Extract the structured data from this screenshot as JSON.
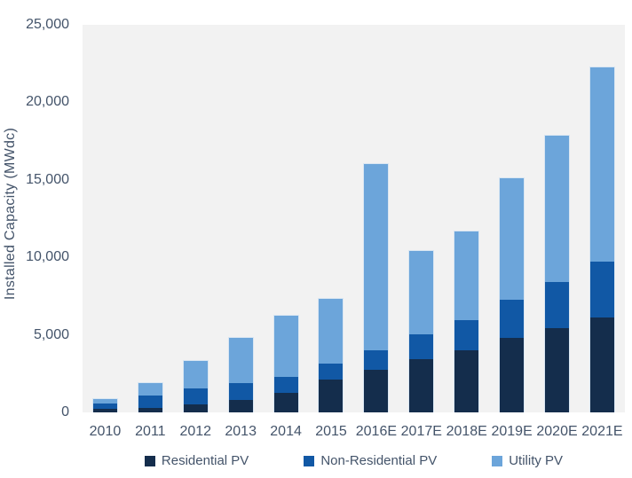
{
  "y_axis": {
    "title": "Installed Capacity (MWdc)",
    "ticks": [
      {
        "value": 0,
        "label": "0"
      },
      {
        "value": 5000,
        "label": "5,000"
      },
      {
        "value": 10000,
        "label": "10,000"
      },
      {
        "value": 15000,
        "label": "15,000"
      },
      {
        "value": 20000,
        "label": "20,000"
      },
      {
        "value": 25000,
        "label": "25,000"
      }
    ]
  },
  "chart_data": {
    "type": "bar",
    "stacked": true,
    "title": "",
    "xlabel": "",
    "ylabel": "Installed Capacity (MWdc)",
    "ylim": [
      0,
      25000
    ],
    "grid": false,
    "legend_position": "bottom",
    "plot_background": "#F2F2F2",
    "text_color": "#44546A",
    "bar_border_color": "#D9E6F2",
    "categories": [
      "2010",
      "2011",
      "2012",
      "2013",
      "2014",
      "2015",
      "2016E",
      "2017E",
      "2018E",
      "2019E",
      "2020E",
      "2021E"
    ],
    "series": [
      {
        "name": "Residential PV",
        "color": "#142D4C",
        "values": [
          250,
          300,
          490,
          790,
          1230,
          2100,
          2750,
          3440,
          4010,
          4800,
          5460,
          6100
        ]
      },
      {
        "name": "Non-Residential PV",
        "color": "#1158A5",
        "values": [
          330,
          790,
          1040,
          1080,
          1040,
          1010,
          1260,
          1600,
          1950,
          2450,
          2980,
          3580
        ]
      },
      {
        "name": "Utility PV",
        "color": "#6CA5DA",
        "values": [
          270,
          780,
          1800,
          2940,
          3930,
          4150,
          11990,
          5360,
          5740,
          7850,
          9460,
          12520
        ]
      }
    ],
    "totals": [
      850,
      1870,
      3330,
      4810,
      6200,
      7260,
      16000,
      10400,
      11700,
      15100,
      17900,
      22200
    ]
  }
}
